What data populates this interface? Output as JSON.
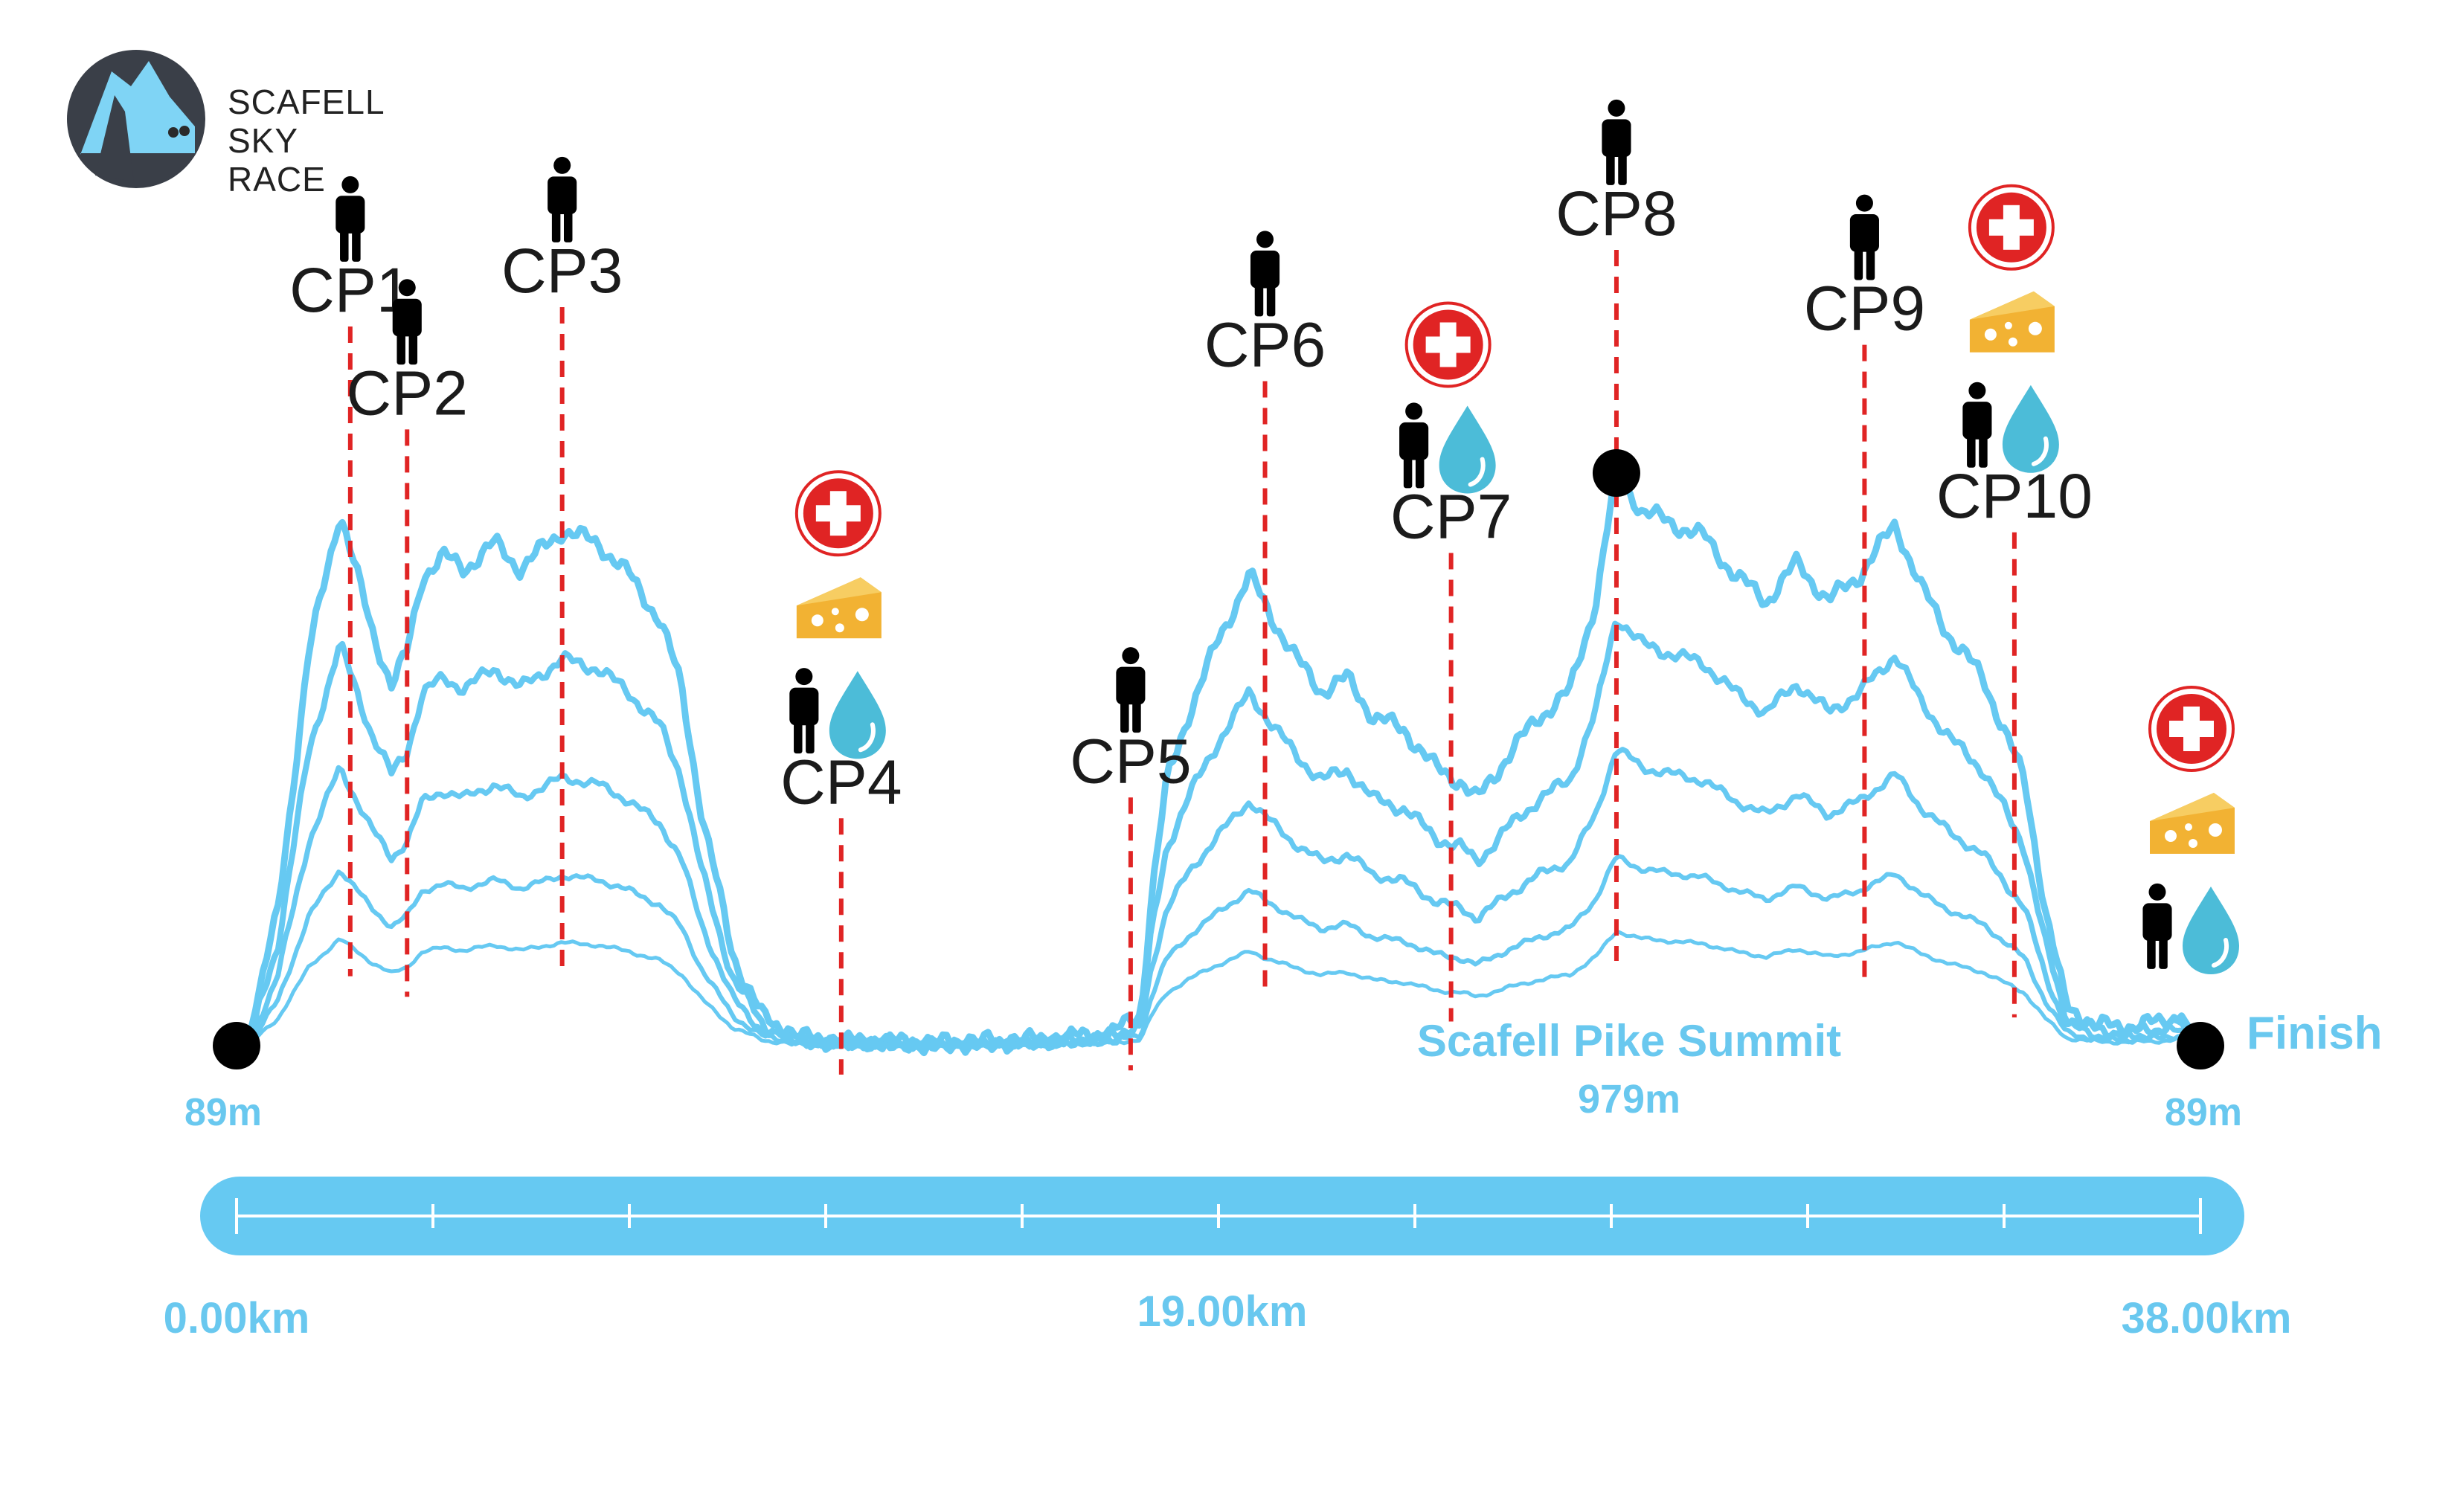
{
  "logo": {
    "lines": [
      "SCAFELL",
      "SKY",
      "RACE"
    ]
  },
  "colors": {
    "profile": "#66c9f2",
    "bar": "#66c9f2",
    "checkpoint_line": "#e02424",
    "first_aid": "#e02424",
    "cheese": "#f2b233",
    "water": "#4cbcd8",
    "marker": "#000000",
    "text": "#1b1b1b"
  },
  "labels": {
    "start_elevation": "89m",
    "summit_name": "Scafell Pike Summit",
    "summit_elevation": "979m",
    "finish": "Finish",
    "finish_elevation": "89m",
    "km_start": "0.00km",
    "km_mid": "19.00km",
    "km_end": "38.00km"
  },
  "chart_data": {
    "type": "line",
    "title": "",
    "x_unit": "km",
    "xlim": [
      0,
      38
    ],
    "x_ticks": [
      "0.00km",
      "19.00km",
      "38.00km"
    ],
    "start": {
      "km": 0,
      "elevation_m": 89,
      "label": "89m"
    },
    "summit": {
      "km": 26.7,
      "elevation_m": 979,
      "name": "Scafell Pike Summit",
      "label": "979m"
    },
    "finish": {
      "km": 38,
      "elevation_m": 89,
      "label": "89m"
    },
    "profile": {
      "x": [
        0,
        0.3,
        0.8,
        1.4,
        2.0,
        2.6,
        3.0,
        3.3,
        3.6,
        4.0,
        4.4,
        5.0,
        5.5,
        6.3,
        7.0,
        7.6,
        8.2,
        8.6,
        9.0,
        9.6,
        10.2,
        11.0,
        11.8,
        12.5,
        13.0,
        13.4,
        14.0,
        15.0,
        16.0,
        17.0,
        17.5,
        17.7,
        18.0,
        18.4,
        19.0,
        19.6,
        20.0,
        20.5,
        21.0,
        21.5,
        22.0,
        22.6,
        23.2,
        23.7,
        24.0,
        24.6,
        25.2,
        25.8,
        26.3,
        26.7,
        27.2,
        27.8,
        28.4,
        29.0,
        29.6,
        30.2,
        30.8,
        31.4,
        32.1,
        32.6,
        33.2,
        33.8,
        34.6,
        35.0,
        35.4,
        36.0,
        36.6,
        37.2,
        37.6,
        38.0
      ],
      "y": [
        89,
        120,
        300,
        700,
        920,
        740,
        650,
        700,
        820,
        850,
        830,
        870,
        830,
        890,
        870,
        820,
        750,
        650,
        450,
        230,
        130,
        100,
        95,
        95,
        93,
        92,
        94,
        96,
        100,
        110,
        140,
        320,
        500,
        600,
        720,
        820,
        760,
        690,
        640,
        660,
        600,
        580,
        520,
        500,
        470,
        540,
        600,
        640,
        780,
        979,
        920,
        900,
        880,
        820,
        780,
        840,
        780,
        820,
        900,
        800,
        720,
        660,
        500,
        300,
        150,
        120,
        118,
        125,
        140,
        89
      ]
    },
    "checkpoints": [
      {
        "name": "CP1",
        "km": 2.2,
        "services": [
          "marshal"
        ]
      },
      {
        "name": "CP2",
        "km": 3.3,
        "services": [
          "marshal"
        ]
      },
      {
        "name": "CP3",
        "km": 6.3,
        "services": [
          "marshal"
        ]
      },
      {
        "name": "CP4",
        "km": 11.7,
        "services": [
          "first-aid",
          "cheese",
          "marshal",
          "water"
        ]
      },
      {
        "name": "CP5",
        "km": 17.3,
        "services": [
          "marshal"
        ]
      },
      {
        "name": "CP6",
        "km": 19.9,
        "services": [
          "marshal"
        ]
      },
      {
        "name": "CP7",
        "km": 23.5,
        "services": [
          "first-aid",
          "marshal",
          "water"
        ]
      },
      {
        "name": "CP8",
        "km": 26.7,
        "services": [
          "marshal"
        ]
      },
      {
        "name": "CP9",
        "km": 31.5,
        "services": [
          "marshal"
        ]
      },
      {
        "name": "CP10",
        "km": 34.4,
        "services": [
          "first-aid",
          "cheese",
          "marshal",
          "water"
        ]
      }
    ],
    "finish_services": [
      "first-aid",
      "cheese",
      "marshal",
      "water"
    ]
  }
}
